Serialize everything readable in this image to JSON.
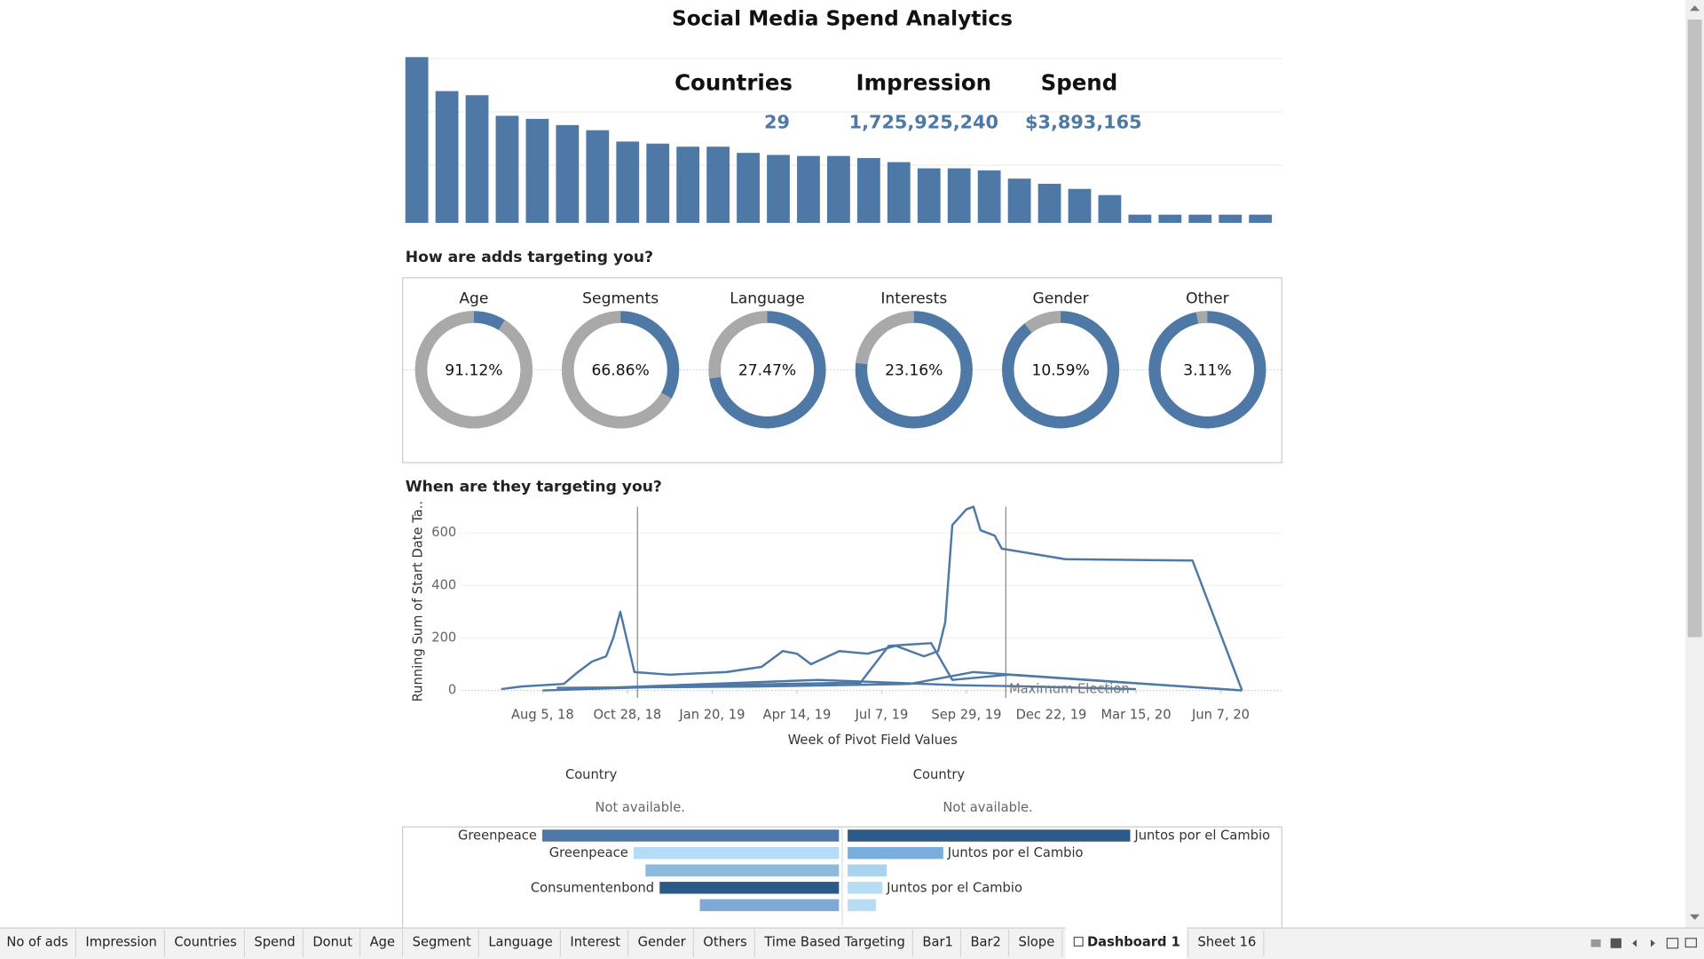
{
  "title": "Social Media Spend Analytics",
  "kpis": [
    {
      "label": "Countries",
      "value": "29"
    },
    {
      "label": "Impression",
      "value": "1,725,925,240"
    },
    {
      "label": "Spend",
      "value": "$3,893,165"
    }
  ],
  "sections": [
    "How are adds targeting you?",
    "When are they targeting you?"
  ],
  "chart_data": [
    {
      "type": "bar",
      "color": "#4e79a7",
      "ylim": [
        0,
        170
      ],
      "values": [
        161,
        128,
        124,
        104,
        101,
        95,
        90,
        79,
        77,
        74,
        74,
        68,
        66,
        65,
        65,
        63,
        59,
        53,
        53,
        51,
        43,
        38,
        33,
        27,
        8,
        8,
        8,
        8,
        8
      ]
    },
    {
      "type": "donut",
      "colors": [
        "#a9a9a9",
        "#4e79a7"
      ],
      "categories": [
        "Age",
        "Segments",
        "Language",
        "Interests",
        "Gender",
        "Other"
      ],
      "values": [
        91.12,
        66.86,
        27.47,
        23.16,
        10.59,
        3.11
      ],
      "value_labels": [
        "91.12%",
        "66.86%",
        "27.47%",
        "23.16%",
        "10.59%",
        "3.11%"
      ]
    },
    {
      "type": "line",
      "color": "#4e79a7",
      "y_label": "Running Sum of Start Date Ta..",
      "x_label": "Week of Pivot Field Values",
      "xlim": [
        "2018-05-17",
        "2020-08-07"
      ],
      "ylim": [
        0,
        700
      ],
      "xticks": [
        {
          "value": "2018-08-05",
          "label": "Aug 5, 18"
        },
        {
          "value": "2018-10-28",
          "label": "Oct 28, 18"
        },
        {
          "value": "2019-01-20",
          "label": "Jan 20, 19"
        },
        {
          "value": "2019-04-14",
          "label": "Apr 14, 19"
        },
        {
          "value": "2019-07-07",
          "label": "Jul 7, 19"
        },
        {
          "value": "2019-09-29",
          "label": "Sep 29, 19"
        },
        {
          "value": "2019-12-22",
          "label": "Dec 22, 19"
        },
        {
          "value": "2020-03-15",
          "label": "Mar 15, 20"
        },
        {
          "value": "2020-06-07",
          "label": "Jun 7, 20"
        }
      ],
      "yticks": [
        0,
        200,
        400,
        600
      ],
      "reference_lines": [
        "2018-11-07",
        "2019-11-07"
      ],
      "annotation": "Maximum Election",
      "series": [
        {
          "x": [
            "2018-06-25",
            "2018-07-15",
            "2018-08-26",
            "2018-09-09",
            "2018-09-23",
            "2018-10-07",
            "2018-10-14",
            "2018-10-21",
            "2018-11-04",
            "2018-12-09",
            "2019-02-03",
            "2019-03-10",
            "2019-03-31",
            "2019-04-14",
            "2019-04-28",
            "2019-05-26",
            "2019-06-23",
            "2019-07-21",
            "2019-08-18",
            "2019-09-01",
            "2019-09-08",
            "2019-09-15",
            "2019-09-29",
            "2019-10-06",
            "2019-10-13",
            "2019-10-27",
            "2019-11-03",
            "2020-01-05",
            "2020-05-10",
            "2020-06-28"
          ],
          "values": [
            5,
            15,
            25,
            70,
            110,
            130,
            200,
            300,
            70,
            60,
            70,
            90,
            150,
            140,
            100,
            150,
            140,
            170,
            130,
            150,
            260,
            630,
            690,
            700,
            610,
            590,
            540,
            500,
            495,
            0
          ]
        },
        {
          "x": [
            "2018-08-05",
            "2019-01-20",
            "2019-06-16",
            "2019-07-14",
            "2019-08-25",
            "2019-09-15",
            "2019-11-10",
            "2020-06-28"
          ],
          "values": [
            0,
            20,
            30,
            170,
            180,
            40,
            60,
            0
          ]
        },
        {
          "x": [
            "2018-08-19",
            "2019-03-03",
            "2019-08-04",
            "2019-10-06",
            "2020-06-28"
          ],
          "values": [
            10,
            15,
            25,
            70,
            0
          ]
        },
        {
          "x": [
            "2018-09-02",
            "2019-05-05",
            "2019-09-22",
            "2019-12-01",
            "2020-03-15"
          ],
          "values": [
            5,
            40,
            20,
            15,
            5
          ]
        }
      ]
    },
    {
      "type": "hbar",
      "direction": "left",
      "title": "Country",
      "subtitle": "Not available.",
      "categories": [
        "Greenpeace",
        "Greenpeace",
        null,
        "Consumentenbond",
        null
      ],
      "values": [
        273,
        189,
        178,
        165,
        128
      ],
      "xlim": [
        0,
        280
      ],
      "colors": [
        "#4e79a7",
        "#b5dcf4",
        "#8cb9de",
        "#2c5a88",
        "#7ea9d6"
      ]
    },
    {
      "type": "hbar",
      "direction": "right",
      "title": "Country",
      "subtitle": "Not available.",
      "categories": [
        "Juntos por el Cambio",
        "Juntos por el Cambio",
        null,
        "Juntos por el Cambio",
        null
      ],
      "values": [
        260,
        88,
        36,
        32,
        26
      ],
      "xlim": [
        0,
        400
      ],
      "colors": [
        "#2c5a88",
        "#7aaedc",
        "#a9d3f0",
        "#b7ddf4",
        "#b7ddf4"
      ]
    }
  ],
  "tabs": [
    "No of ads",
    "Impression",
    "Countries",
    "Spend",
    "Donut",
    "Age",
    "Segment",
    "Language",
    "Interest",
    "Gender",
    "Others",
    "Time Based Targeting",
    "Bar1",
    "Bar2",
    "Slope",
    "Dashboard 1",
    "Sheet 16"
  ],
  "active_tab": 15
}
